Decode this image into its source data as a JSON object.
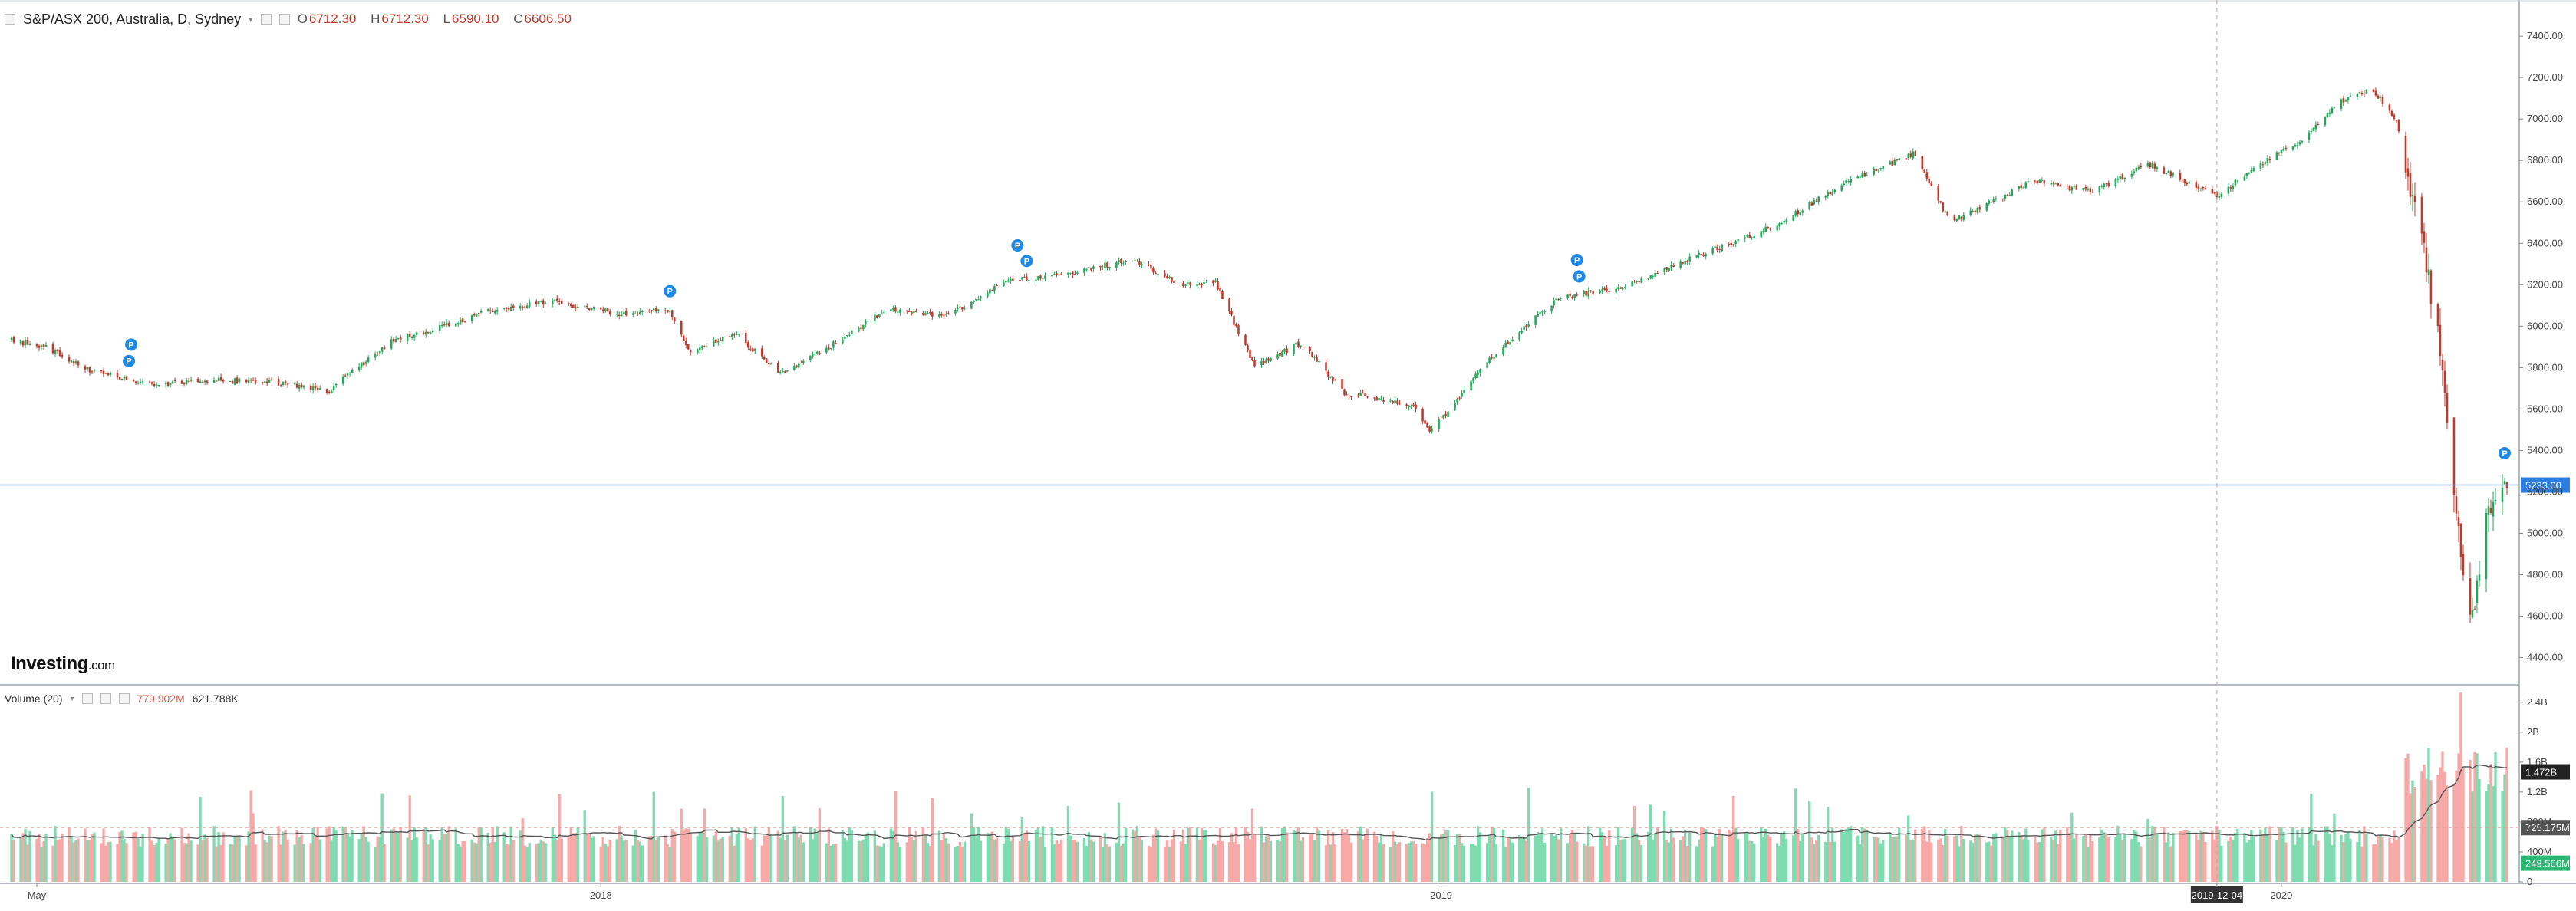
{
  "header": {
    "symbol_title": "S&P/ASX 200, Australia, D, Sydney",
    "open_label": "O",
    "open_value": "6712.30",
    "high_label": "H",
    "high_value": "6712.30",
    "low_label": "L",
    "low_value": "6590.10",
    "close_label": "C",
    "close_value": "6606.50"
  },
  "volume_header": {
    "label": "Volume (20)",
    "value1": "779.902M",
    "value2": "621.788K"
  },
  "logo": {
    "main": "Investing",
    "suffix": ".com"
  },
  "colors": {
    "up": "#26a65b",
    "down": "#c0392b",
    "up_vol": "#7fdcb0",
    "down_vol": "#f7a9a8",
    "price_line": "#2e7de0",
    "ma": "#555555"
  },
  "chart_data": {
    "type": "candlestick",
    "price_axis": {
      "ticks": [
        "7400.00",
        "7200.00",
        "7000.00",
        "6800.00",
        "6600.00",
        "6400.00",
        "6200.00",
        "6000.00",
        "5800.00",
        "5600.00",
        "5400.00",
        "5200.00",
        "5000.00",
        "4800.00",
        "4600.00",
        "4400.00"
      ],
      "ylim": [
        4280,
        7530
      ],
      "current_price_label": "5233.00",
      "current_price": 5233.0
    },
    "time_axis": {
      "labels": [
        "May",
        "2018",
        "2019",
        "2019-12-04",
        "2020"
      ],
      "highlighted": "2019-12-04"
    },
    "price_path": {
      "dates": [
        "2017-04-20",
        "2017-05-05",
        "2017-05-25",
        "2017-06-20",
        "2017-07-15",
        "2017-08-10",
        "2017-09-05",
        "2017-10-01",
        "2017-10-25",
        "2017-11-15",
        "2017-12-10",
        "2018-01-10",
        "2018-01-31",
        "2018-02-08",
        "2018-03-01",
        "2018-03-20",
        "2018-04-10",
        "2018-05-05",
        "2018-06-01",
        "2018-06-25",
        "2018-07-20",
        "2018-08-20",
        "2018-09-10",
        "2018-09-25",
        "2018-10-12",
        "2018-11-01",
        "2018-11-20",
        "2018-12-20",
        "2018-12-27",
        "2019-01-20",
        "2019-02-20",
        "2019-03-20",
        "2019-04-20",
        "2019-05-25",
        "2019-06-25",
        "2019-07-25",
        "2019-08-10",
        "2019-09-15",
        "2019-10-10",
        "2019-11-05",
        "2019-12-04",
        "2019-12-20",
        "2020-01-10",
        "2020-01-25",
        "2020-02-10",
        "2020-02-20",
        "2020-03-01",
        "2020-03-10",
        "2020-03-17",
        "2020-03-23",
        "2020-03-31",
        "2020-04-08"
      ],
      "closes": [
        5930,
        5900,
        5780,
        5720,
        5740,
        5730,
        5690,
        5920,
        6000,
        6080,
        6120,
        6060,
        6080,
        5880,
        5960,
        5770,
        5900,
        6080,
        6050,
        6210,
        6250,
        6320,
        6200,
        6210,
        5800,
        5920,
        5680,
        5620,
        5480,
        5820,
        6130,
        6190,
        6330,
        6480,
        6690,
        6830,
        6500,
        6700,
        6650,
        6780,
        6630,
        6760,
        6900,
        7080,
        7140,
        7000,
        6480,
        5900,
        5100,
        4550,
        5100,
        5233
      ]
    },
    "volume_axis": {
      "ticks": [
        "2.4B",
        "2B",
        "1.6B",
        "1.2B",
        "800M",
        "400M",
        "0"
      ],
      "ylim": [
        0,
        2500000000
      ],
      "ma_label": "1.472B",
      "mid_label": "725.175M",
      "current_label": "249.566M"
    },
    "markers": {
      "symbol": "P",
      "dates": [
        "2017-06-10",
        "2017-06-11",
        "2018-01-31",
        "2018-07-01",
        "2018-07-05",
        "2019-03-01",
        "2019-03-02",
        "2020-04-07"
      ]
    }
  }
}
